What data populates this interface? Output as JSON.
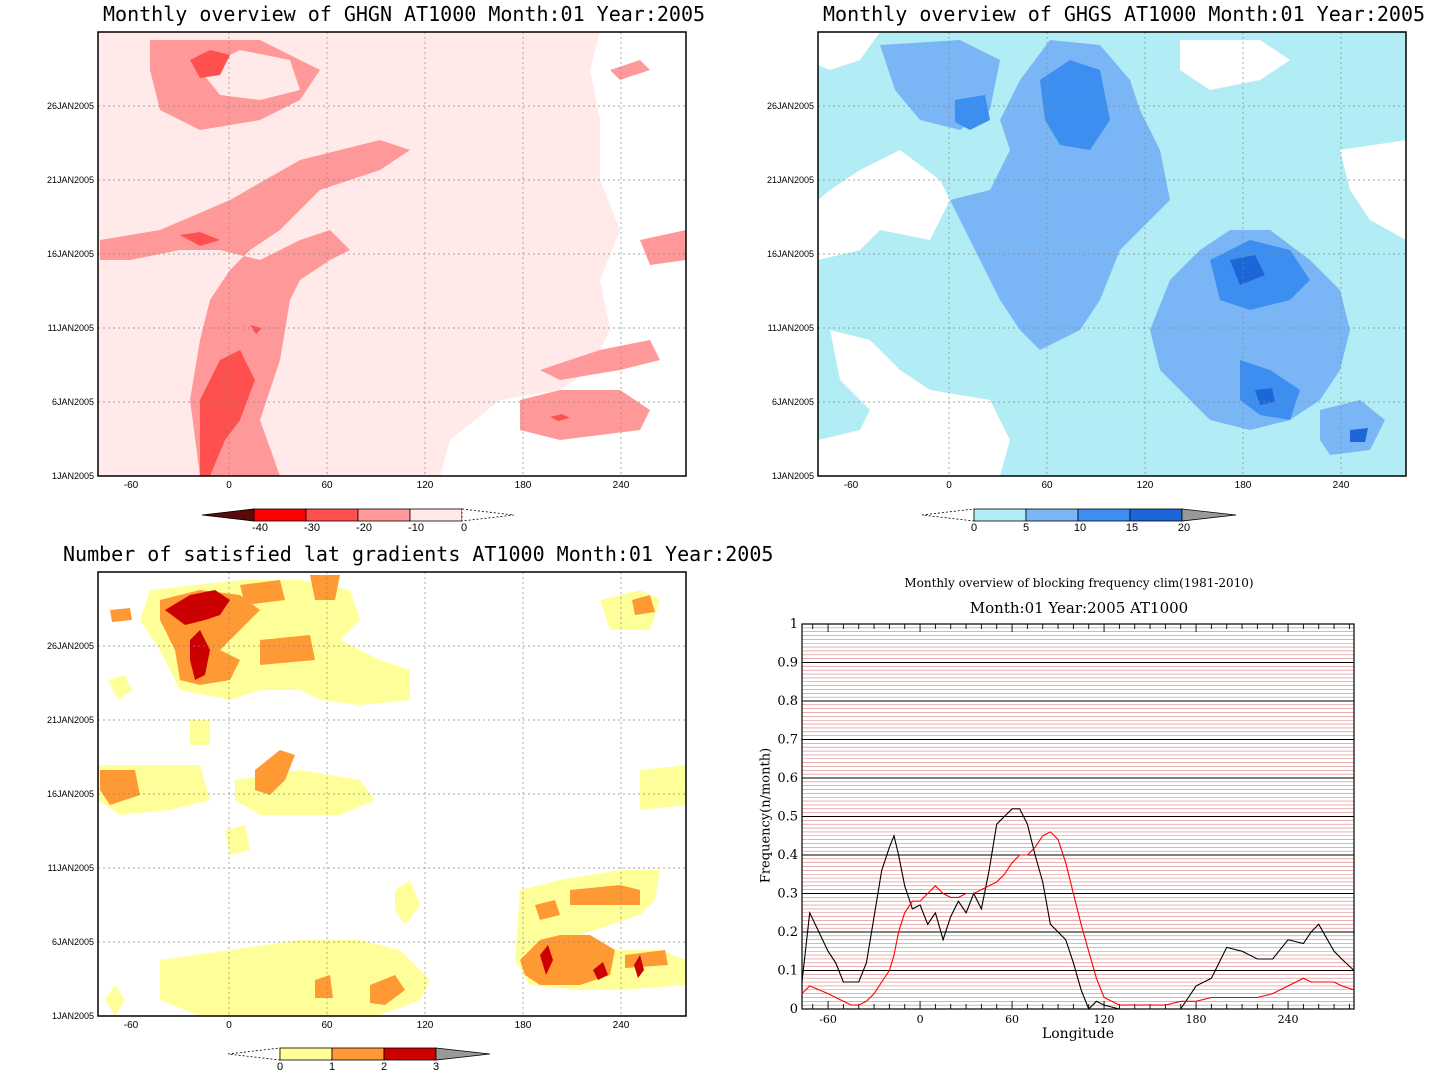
{
  "panels": {
    "ghgn": {
      "title": "Monthly overview of GHGN AT1000 Month:01 Year:2005",
      "colorbar_labels": [
        "-40",
        "-30",
        "-20",
        "-10",
        "0"
      ],
      "colors": [
        "#5a0a0a",
        "#ff0000",
        "#ff5050",
        "#ff9999",
        "#ffe9e9"
      ]
    },
    "ghgs": {
      "title": "Monthly overview of GHGS AT1000 Month:01 Year:2005",
      "colorbar_labels": [
        "0",
        "5",
        "10",
        "15",
        "20"
      ],
      "colors": [
        "#b2ecf5",
        "#7ab6f5",
        "#3c8ff0",
        "#1c66d8",
        "#999999"
      ]
    },
    "gradients": {
      "title": "Number of satisfied lat gradients AT1000 Month:01 Year:2005",
      "colorbar_labels": [
        "0",
        "1",
        "2",
        "3"
      ],
      "colors": [
        "#ffff99",
        "#ff9933",
        "#cc0000",
        "#999999"
      ]
    }
  },
  "map_axes": {
    "x_ticks": [
      "-60",
      "0",
      "60",
      "120",
      "180",
      "240"
    ],
    "y_ticks": [
      "26JAN2005",
      "21JAN2005",
      "16JAN2005",
      "11JAN2005",
      "6JAN2005",
      "1JAN2005"
    ]
  },
  "chart_data": {
    "type": "line",
    "title": "Monthly overview of blocking frequency clim(1981-2010)",
    "subtitle": "Month:01 Year:2005  AT1000",
    "xlabel": "Longitude",
    "ylabel": "Frequency(n/month)",
    "xlim": [
      -77,
      283
    ],
    "ylim": [
      0,
      1
    ],
    "x_ticks": [
      "-60",
      "0",
      "60",
      "120",
      "180",
      "240"
    ],
    "y_ticks": [
      "0",
      "0.1",
      "0.2",
      "0.3",
      "0.4",
      "0.5",
      "0.6",
      "0.7",
      "0.8",
      "0.9",
      "1"
    ],
    "grid": true,
    "x": [
      -77,
      -72,
      -66,
      -60,
      -55,
      -50,
      -45,
      -40,
      -35,
      -30,
      -25,
      -20,
      -17,
      -14,
      -10,
      -5,
      0,
      5,
      10,
      15,
      20,
      25,
      30,
      35,
      40,
      45,
      50,
      55,
      60,
      65,
      70,
      75,
      80,
      85,
      90,
      95,
      100,
      105,
      110,
      115,
      120,
      130,
      140,
      150,
      160,
      170,
      175,
      180,
      190,
      200,
      210,
      220,
      230,
      240,
      250,
      255,
      260,
      270,
      275,
      283
    ],
    "series": [
      {
        "color": "#000000",
        "values": [
          0.07,
          0.25,
          0.2,
          0.15,
          0.12,
          0.07,
          0.07,
          0.07,
          0.12,
          0.24,
          0.36,
          0.42,
          0.45,
          0.4,
          0.32,
          0.26,
          0.27,
          0.22,
          0.25,
          0.18,
          0.24,
          0.28,
          0.25,
          0.3,
          0.26,
          0.36,
          0.48,
          0.5,
          0.52,
          0.52,
          0.48,
          0.4,
          0.33,
          0.22,
          0.2,
          0.18,
          0.12,
          0.05,
          0.0,
          0.02,
          0.01,
          0.0,
          0.0,
          0.0,
          0.0,
          0.0,
          0.03,
          0.06,
          0.08,
          0.16,
          0.15,
          0.13,
          0.13,
          0.18,
          0.17,
          0.2,
          0.22,
          0.15,
          0.13,
          0.1
        ]
      },
      {
        "color": "#ff0000",
        "values": [
          0.04,
          0.06,
          0.05,
          0.04,
          0.03,
          0.02,
          0.01,
          0.01,
          0.02,
          0.04,
          0.07,
          0.1,
          0.14,
          0.2,
          0.25,
          0.28,
          0.28,
          0.3,
          0.32,
          0.3,
          0.29,
          0.29,
          0.3,
          0.3,
          0.31,
          0.32,
          0.33,
          0.35,
          0.38,
          0.4,
          0.4,
          0.42,
          0.45,
          0.46,
          0.44,
          0.38,
          0.3,
          0.22,
          0.15,
          0.08,
          0.03,
          0.01,
          0.01,
          0.01,
          0.01,
          0.02,
          0.02,
          0.02,
          0.03,
          0.03,
          0.03,
          0.03,
          0.04,
          0.06,
          0.08,
          0.07,
          0.07,
          0.07,
          0.06,
          0.05
        ]
      }
    ]
  }
}
